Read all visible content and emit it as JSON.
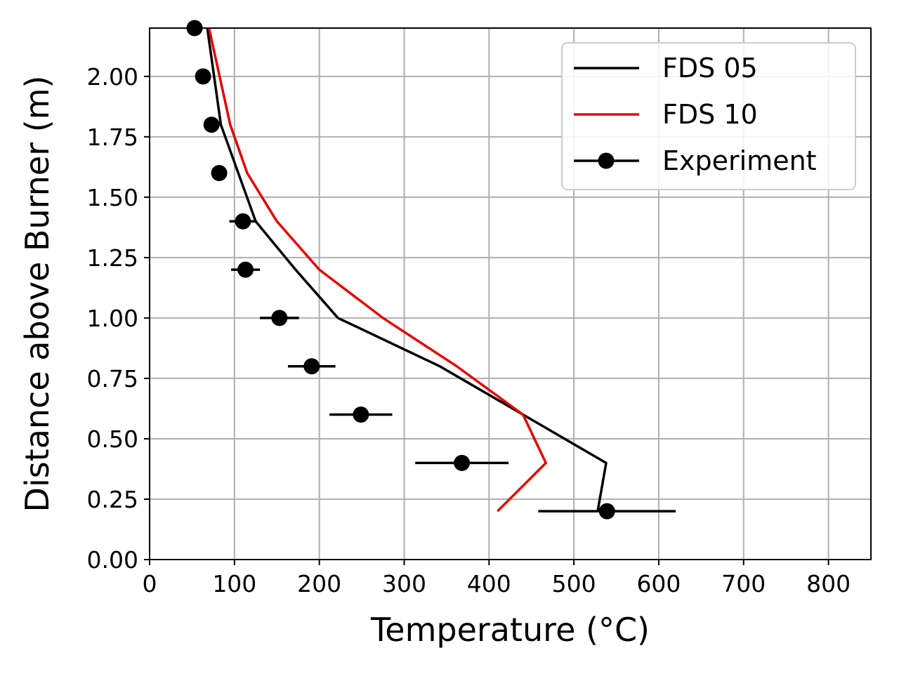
{
  "chart_data": {
    "type": "line",
    "xlabel": "Temperature (°C)",
    "ylabel": "Distance above Burner (m)",
    "xlim": [
      0,
      850
    ],
    "ylim": [
      0,
      2.2
    ],
    "xticks": [
      0,
      100,
      200,
      300,
      400,
      500,
      600,
      700,
      800
    ],
    "yticks": [
      0.0,
      0.25,
      0.5,
      0.75,
      1.0,
      1.25,
      1.5,
      1.75,
      2.0
    ],
    "xtick_labels": [
      "0",
      "100",
      "200",
      "300",
      "400",
      "500",
      "600",
      "700",
      "800"
    ],
    "ytick_labels": [
      "0.00",
      "0.25",
      "0.50",
      "0.75",
      "1.00",
      "1.25",
      "1.50",
      "1.75",
      "2.00"
    ],
    "grid": true,
    "legend_position": "top-right",
    "colors": {
      "fds05": "#000000",
      "fds10": "#e00000",
      "experiment": "#000000",
      "grid": "#b0b0b0"
    },
    "series": [
      {
        "name": "FDS 05",
        "kind": "line",
        "x": [
          68,
          84,
          125,
          172,
          222,
          342,
          440,
          538,
          528
        ],
        "y": [
          2.2,
          1.8,
          1.4,
          1.2,
          1.0,
          0.8,
          0.6,
          0.4,
          0.2
        ]
      },
      {
        "name": "FDS 10",
        "kind": "line",
        "x": [
          70,
          95,
          115,
          150,
          200,
          275,
          362,
          440,
          467,
          410
        ],
        "y": [
          2.2,
          1.8,
          1.6,
          1.4,
          1.2,
          1.0,
          0.8,
          0.6,
          0.4,
          0.2
        ]
      },
      {
        "name": "Experiment",
        "kind": "errorbar",
        "x": [
          53,
          63,
          73,
          82,
          110,
          113,
          153,
          191,
          249,
          368,
          539
        ],
        "y": [
          2.2,
          2.0,
          1.8,
          1.6,
          1.4,
          1.2,
          1.0,
          0.8,
          0.6,
          0.4,
          0.2
        ],
        "xerr": [
          0,
          0,
          0,
          6,
          16,
          17,
          23,
          28,
          37,
          55,
          81
        ]
      }
    ]
  }
}
